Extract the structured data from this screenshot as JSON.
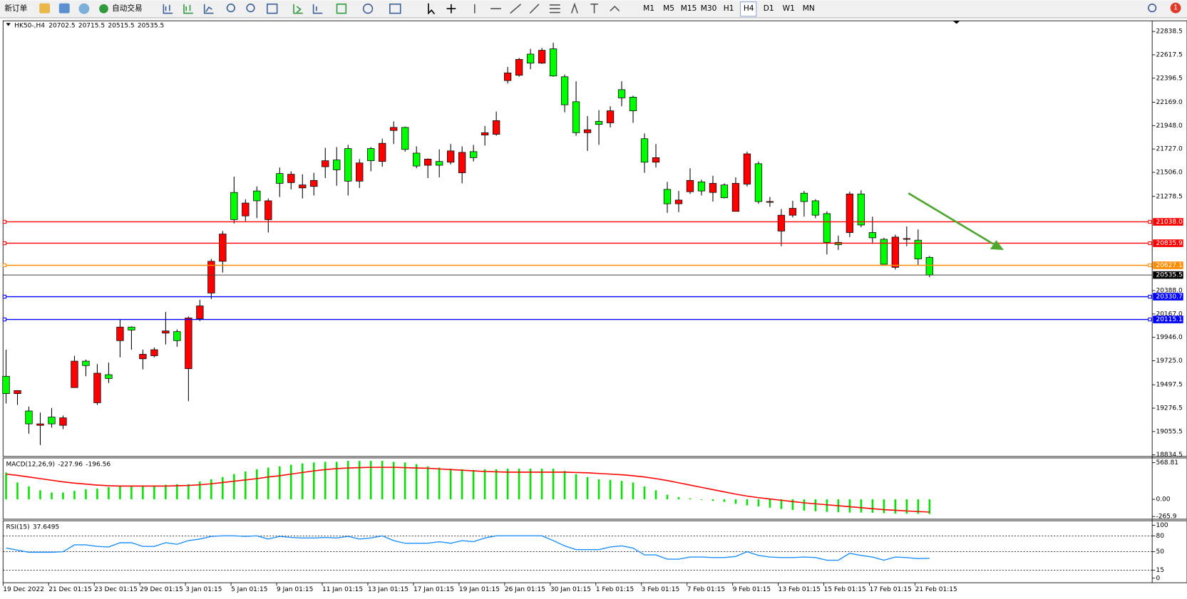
{
  "toolbar": {
    "new_order": "新订单",
    "auto_trading": "自动交易",
    "timeframes": [
      "M1",
      "M5",
      "M15",
      "M30",
      "H1",
      "H4",
      "D1",
      "W1",
      "MN"
    ],
    "active": "H4",
    "badge": "1"
  },
  "chart_data": [
    {
      "type": "candlestick",
      "symbol": "HK50-,H4",
      "bull_color": "#ff0000",
      "bear_color": "#00ff00",
      "grid": false,
      "categories": [
        "19 Dec 2022",
        null,
        null,
        null,
        "21 Dec 01:15",
        null,
        null,
        null,
        "23 Dec 01:15",
        null,
        null,
        null,
        "29 Dec 01:15",
        null,
        null,
        null,
        "3 Jan 01:15",
        null,
        null,
        null,
        "5 Jan 01:15",
        null,
        null,
        null,
        "9 Jan 01:15",
        null,
        null,
        null,
        "11 Jan 01:15",
        null,
        null,
        null,
        "13 Jan 01:15",
        null,
        null,
        null,
        "17 Jan 01:15",
        null,
        null,
        null,
        "19 Jan 01:15",
        null,
        null,
        null,
        "26 Jan 01:15",
        null,
        null,
        null,
        "30 Jan 01:15",
        null,
        null,
        null,
        "1 Feb 01:15",
        null,
        null,
        null,
        "3 Feb 01:15",
        null,
        null,
        null,
        "7 Feb 01:15",
        null,
        null,
        null,
        "9 Feb 01:15",
        null,
        null,
        null,
        "13 Feb 01:15",
        null,
        null,
        null,
        "15 Feb 01:15",
        null,
        null,
        null,
        "17 Feb 01:15",
        null,
        null,
        null,
        "21 Feb 01:15",
        null
      ],
      "open": [
        19578,
        19414,
        19250,
        19114,
        19192,
        19114,
        19471,
        19721,
        19328,
        19593,
        19915,
        20043,
        19743,
        19772,
        19986,
        20000,
        19650,
        20122,
        20365,
        20665,
        21316,
        21094,
        21330,
        21059,
        21495,
        21409,
        21359,
        21373,
        21559,
        21623,
        21731,
        21423,
        21731,
        21609,
        21902,
        21931,
        21688,
        21573,
        21609,
        21602,
        21502,
        21702,
        21859,
        21866,
        22374,
        22424,
        22624,
        22539,
        22674,
        22410,
        22174,
        21881,
        21988,
        21974,
        22288,
        22217,
        21824,
        21602,
        21345,
        21209,
        21323,
        21416,
        21316,
        21387,
        21137,
        21395,
        21588,
        21223,
        20951,
        21101,
        21309,
        21237,
        21116,
        20844,
        20937,
        21302,
        20937,
        20873,
        20608,
        20873,
        20865,
        20702.5
      ],
      "high": [
        19829,
        19443,
        19292,
        19235,
        19278,
        19207,
        19772,
        19736,
        19693,
        19707,
        20115,
        20050,
        19829,
        19850,
        20186,
        20022,
        20143,
        20301,
        20687,
        20951,
        21466,
        21252,
        21373,
        21259,
        21552,
        21516,
        21488,
        21502,
        21738,
        21745,
        21766,
        21631,
        21745,
        21824,
        21988,
        21938,
        21752,
        21638,
        21723,
        21774,
        21752,
        21766,
        21945,
        22081,
        22503,
        22589,
        22674,
        22682,
        22732,
        22431,
        22367,
        22038,
        22095,
        22131,
        22367,
        22231,
        21874,
        21774,
        21416,
        21330,
        21545,
        21437,
        21473,
        21402,
        21459,
        21702,
        21609,
        21273,
        21159,
        21237,
        21330,
        21252,
        21137,
        20908,
        21323,
        21337,
        21087,
        20887,
        20916,
        20994,
        20966,
        20715.5
      ],
      "low": [
        19321,
        19307,
        19035,
        18928,
        19092,
        19078,
        19471,
        19578,
        19307,
        19514,
        19757,
        19829,
        19643,
        19757,
        19879,
        19857,
        19343,
        20100,
        20308,
        20558,
        21023,
        21044,
        21073,
        20937,
        21273,
        21345,
        21259,
        21287,
        21452,
        21380,
        21287,
        21359,
        21516,
        21559,
        21774,
        21702,
        21545,
        21452,
        21459,
        21580,
        21402,
        21609,
        21759,
        21852,
        22346,
        22410,
        22481,
        22531,
        22410,
        22074,
        21852,
        21709,
        21766,
        21931,
        22131,
        21974,
        21502,
        21552,
        21123,
        21130,
        21302,
        21287,
        21230,
        21259,
        21137,
        21373,
        21209,
        21180,
        20808,
        21080,
        21087,
        21073,
        20730,
        20773,
        20894,
        20987,
        20830,
        20637,
        20587,
        20808,
        20630,
        20515.5
      ],
      "close": [
        19414,
        19443,
        19128,
        19128,
        19128,
        19185,
        19721,
        19679,
        19607,
        19557,
        20043,
        20015,
        19786,
        19829,
        20007,
        19915,
        20129,
        20243,
        20665,
        20923,
        21059,
        21216,
        21237,
        21237,
        21402,
        21488,
        21387,
        21430,
        21616,
        21530,
        21423,
        21595,
        21616,
        21781,
        21931,
        21723,
        21566,
        21631,
        21573,
        21709,
        21695,
        21645,
        21881,
        21995,
        22446,
        22574,
        22539,
        22660,
        22417,
        22145,
        21881,
        21909,
        21959,
        22088,
        22210,
        22088,
        21602,
        21645,
        21209,
        21244,
        21430,
        21330,
        21402,
        21266,
        21402,
        21681,
        21230,
        21230,
        21101,
        21166,
        21230,
        21101,
        20844,
        20823,
        21302,
        21008,
        20887,
        20637,
        20894,
        20880,
        20687,
        20535.5
      ],
      "ylim": [
        18820,
        22939
      ],
      "yticks": [
        22838.5,
        22617.5,
        22396.5,
        {
          "value": 22169,
          "label": "22169.0"
        },
        {
          "value": 21948,
          "label": "21948.0"
        },
        {
          "value": 21727,
          "label": "21727.0"
        },
        {
          "value": 21506,
          "label": "21506.0"
        },
        21278.5,
        {
          "value": 20388,
          "label": "20388.0"
        },
        {
          "value": 20167,
          "label": "20167.0"
        },
        {
          "value": 19946,
          "label": "19946.0"
        },
        {
          "value": 19725,
          "label": "19725.0"
        },
        19497.5,
        19276.5,
        19055.5,
        18834.5
      ],
      "levels": [
        {
          "value": 21038,
          "label": "21038.0",
          "color": "#ff0000"
        },
        {
          "value": 20835.9,
          "color": "#ff0000"
        },
        {
          "value": 20627.1,
          "color": "#ff8c00"
        },
        {
          "value": 20330.7,
          "color": "#0000ff"
        },
        {
          "value": 20115.1,
          "color": "#0000ff"
        }
      ]
    },
    {
      "type": "macd",
      "name": "MACD(12,26,9)",
      "color": "#00e600",
      "signal_color": "#ff0000",
      "histogram": [
        415,
        260,
        200,
        140,
        105,
        105,
        130,
        155,
        165,
        190,
        215,
        215,
        215,
        215,
        225,
        235,
        235,
        275,
        310,
        345,
        390,
        430,
        465,
        490,
        510,
        535,
        555,
        570,
        580,
        580,
        595,
        595,
        595,
        595,
        580,
        570,
        545,
        510,
        490,
        475,
        465,
        455,
        465,
        465,
        475,
        475,
        475,
        475,
        475,
        440,
        390,
        345,
        310,
        300,
        285,
        260,
        200,
        140,
        70,
        35,
        15,
        -10,
        -25,
        -40,
        -70,
        -95,
        -110,
        -130,
        -150,
        -165,
        -175,
        -185,
        -195,
        -200,
        -205,
        -205,
        -210,
        -215,
        -220,
        -222,
        -225,
        -227.96
      ],
      "signal": [
        390,
        370,
        345,
        320,
        295,
        270,
        250,
        235,
        220,
        210,
        205,
        205,
        205,
        205,
        205,
        210,
        215,
        225,
        240,
        260,
        280,
        300,
        320,
        345,
        365,
        390,
        415,
        440,
        460,
        475,
        485,
        490,
        495,
        495,
        495,
        490,
        485,
        480,
        470,
        460,
        450,
        440,
        430,
        425,
        420,
        420,
        420,
        420,
        420,
        420,
        415,
        410,
        400,
        390,
        380,
        365,
        345,
        320,
        290,
        255,
        220,
        185,
        150,
        115,
        80,
        50,
        25,
        5,
        -15,
        -35,
        -55,
        -70,
        -85,
        -100,
        -115,
        -130,
        -145,
        -160,
        -170,
        -180,
        -190,
        -196.56
      ],
      "ylim": [
        -308,
        640
      ],
      "yticks": [
        568.81,
        {
          "value": 0,
          "label": "0.00"
        },
        -265.9
      ]
    },
    {
      "type": "rsi",
      "name": "RSI(15)",
      "color": "#1e90ff",
      "values": [
        57,
        53,
        49,
        49,
        49,
        50,
        63,
        63,
        60,
        59,
        67,
        67,
        60,
        60,
        67,
        64,
        71,
        74,
        79,
        80,
        80,
        79,
        80,
        74,
        79,
        77,
        76,
        76,
        77,
        76,
        79,
        74,
        76,
        80,
        71,
        66,
        66,
        66,
        69,
        66,
        71,
        69,
        76,
        80,
        80,
        80,
        80,
        80,
        71,
        61,
        54,
        54,
        54,
        59,
        61,
        57,
        44,
        44,
        36,
        36,
        40,
        40,
        39,
        39,
        41,
        50,
        43,
        40,
        39,
        39,
        40,
        39,
        34,
        34,
        47,
        43,
        40,
        34,
        40,
        39,
        37,
        37.6495
      ],
      "ylim": [
        -8.6,
        108.6
      ],
      "yticks": [
        100,
        80,
        50,
        15,
        0
      ],
      "levels": [
        80,
        50,
        15
      ]
    }
  ]
}
